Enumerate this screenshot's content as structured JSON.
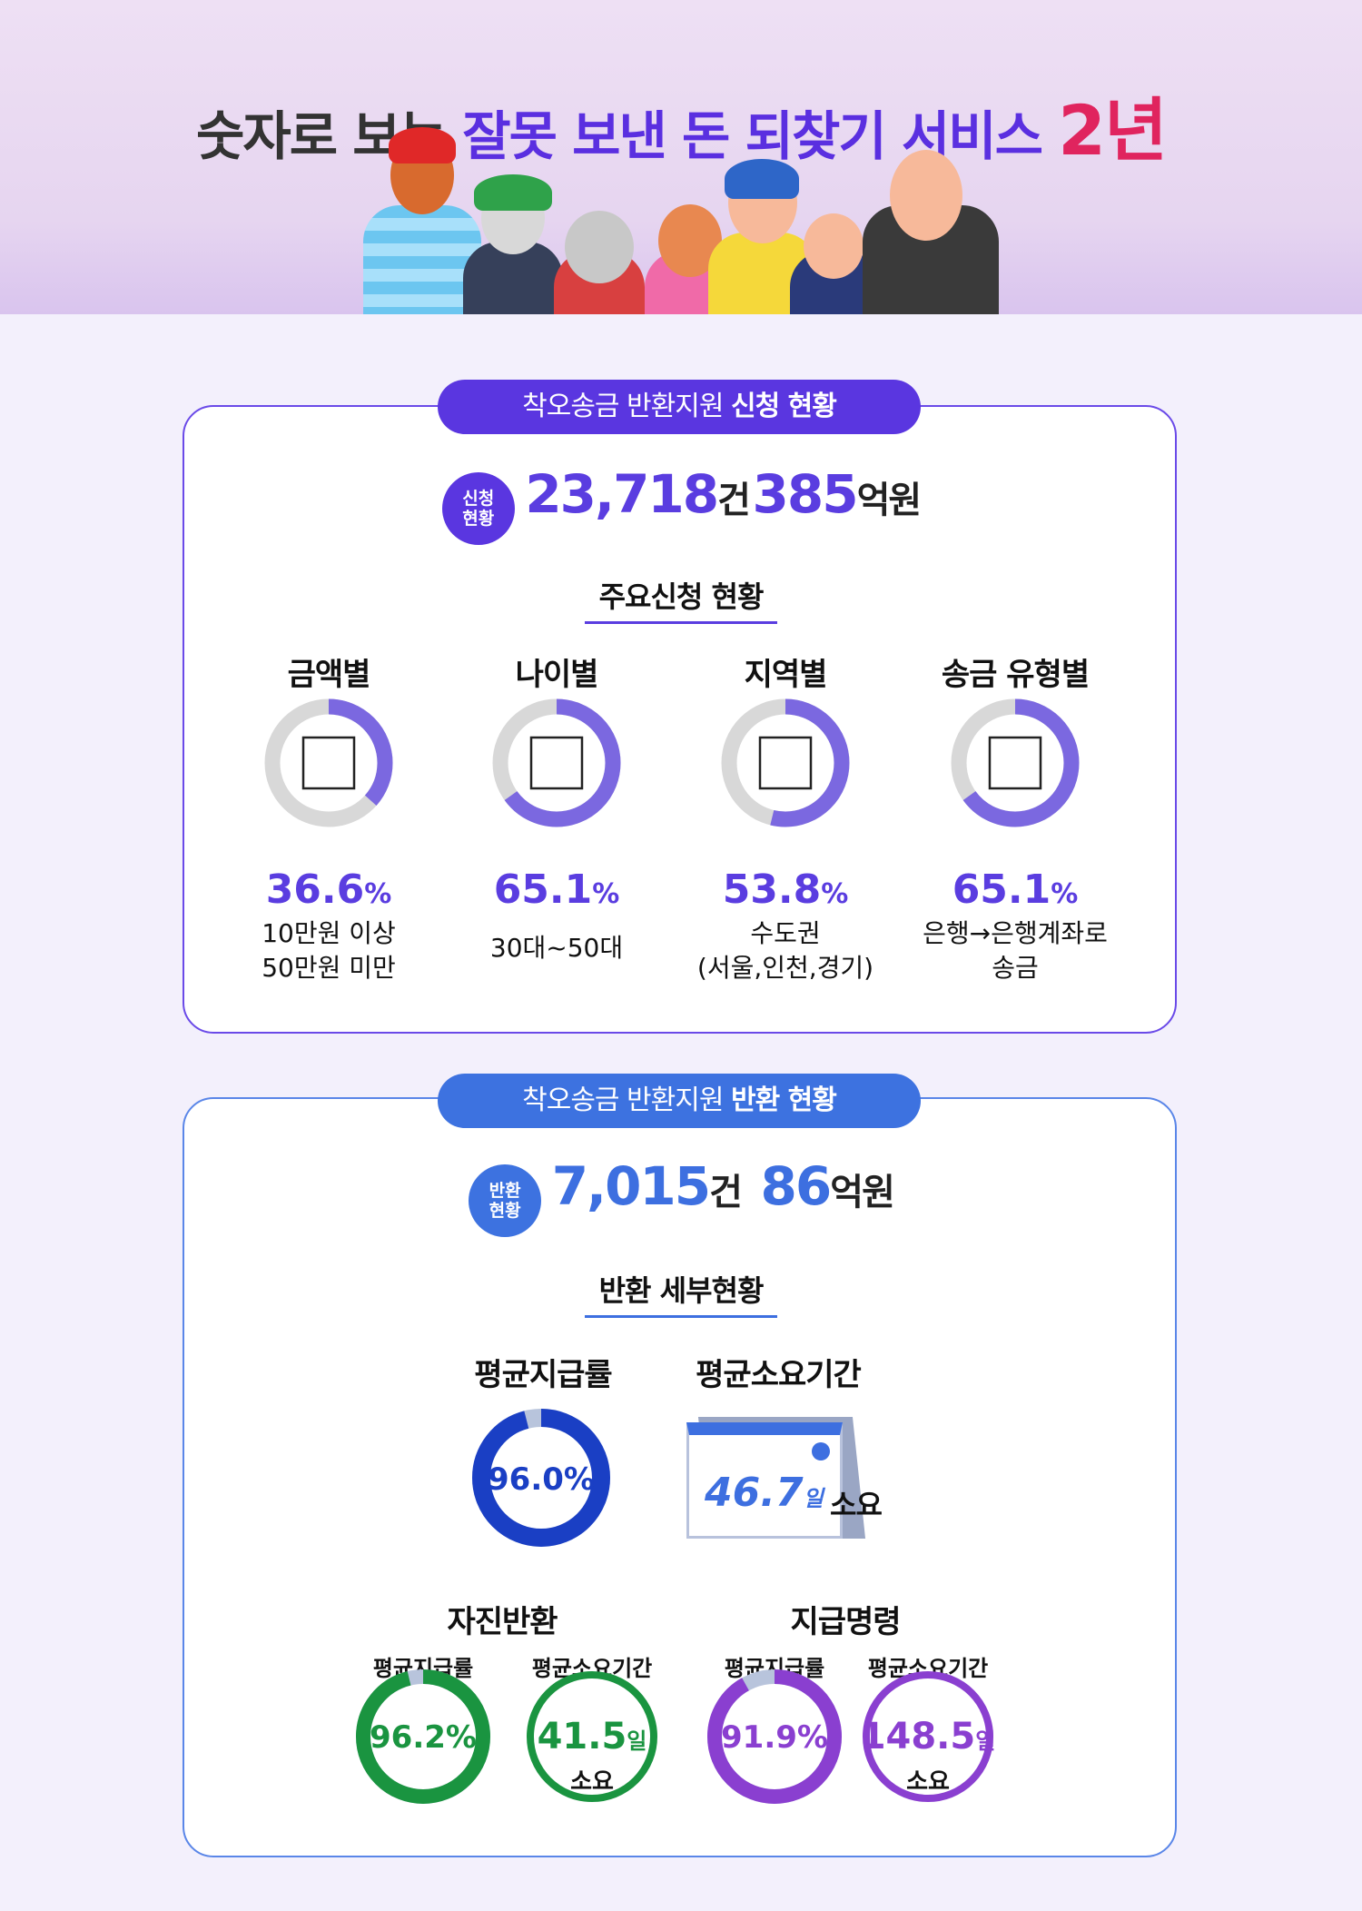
{
  "header": {
    "title_prefix": "숫자로 보는",
    "title_main": "잘못 보낸 돈 되찾기 서비스",
    "title_years": "2년"
  },
  "application": {
    "pill_prefix": "착오송금 반환지원",
    "pill_bold": "신청 현황",
    "badge_line1": "신청",
    "badge_line2": "현황",
    "count": "23,718",
    "count_unit": "건",
    "amount": "385",
    "amount_unit": "억원",
    "subtitle": "주요신청 현황",
    "categories": [
      {
        "title": "금액별",
        "percent": "36.6",
        "pct_sign": "%",
        "value": 36.6,
        "desc1": "10만원 이상",
        "desc2": "50만원 미만",
        "icon": "banknote-icon"
      },
      {
        "title": "나이별",
        "percent": "65.1",
        "pct_sign": "%",
        "value": 65.1,
        "desc1": "30대~50대",
        "desc2": "",
        "icon": "face-scan-icon"
      },
      {
        "title": "지역별",
        "percent": "53.8",
        "pct_sign": "%",
        "value": 53.8,
        "desc1": "수도권",
        "desc2": "(서울,인천,경기)",
        "icon": "map-pin-icon"
      },
      {
        "title": "송금 유형별",
        "percent": "65.1",
        "pct_sign": "%",
        "value": 65.1,
        "desc1": "은행→은행계좌로",
        "desc2": "송금",
        "icon": "document-search-icon"
      }
    ]
  },
  "return": {
    "pill_prefix": "착오송금 반환지원",
    "pill_bold": "반환 현황",
    "badge_line1": "반환",
    "badge_line2": "현황",
    "count": "7,015",
    "count_unit": "건",
    "amount": "86",
    "amount_unit": "억원",
    "subtitle": "반환 세부현황",
    "avg_rate_label": "평균지급률",
    "avg_rate": "96.0%",
    "avg_rate_value": 96.0,
    "avg_period_label": "평균소요기간",
    "avg_period": "46.7",
    "day_unit": "일",
    "period_suffix": "소요",
    "voluntary": {
      "title": "자진반환",
      "rate_label": "평균지급률",
      "rate": "96.2%",
      "rate_value": 96.2,
      "period_label": "평균소요기간",
      "period": "41.5",
      "day_unit": "일",
      "suffix": "소요"
    },
    "payment_order": {
      "title": "지급명령",
      "rate_label": "평균지급률",
      "rate": "91.9%",
      "rate_value": 91.9,
      "period_label": "평균소요기간",
      "period": "148.5",
      "day_unit": "일",
      "suffix": "소요"
    }
  },
  "colors": {
    "purple": "#5a3de0",
    "donut_purple": "#7b68e0",
    "blue": "#3d6fe0",
    "navy_donut": "#1a3fc4",
    "green": "#1a9440",
    "violet": "#8a3fd0",
    "track": "#d8d8d8",
    "red": "#e0245e"
  }
}
